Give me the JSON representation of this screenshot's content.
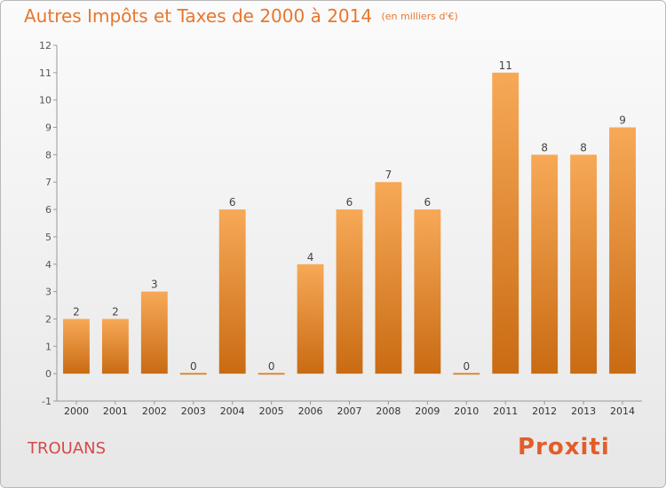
{
  "title": {
    "main": "Autres Impôts et Taxes de 2000 à 2014",
    "unit": "(en milliers d'€)"
  },
  "location": "TROUANS",
  "logo": {
    "text": "Proxiti"
  },
  "colors": {
    "accent": "#e8762d",
    "bar_light": "#f7a957",
    "bar_dark": "#c96b13",
    "location_text": "#d44a4a"
  },
  "chart_data": {
    "type": "bar",
    "categories": [
      "2000",
      "2001",
      "2002",
      "2003",
      "2004",
      "2005",
      "2006",
      "2007",
      "2008",
      "2009",
      "2010",
      "2011",
      "2012",
      "2013",
      "2014"
    ],
    "values": [
      2,
      2,
      3,
      0,
      6,
      0,
      4,
      6,
      7,
      6,
      0,
      11,
      8,
      8,
      9
    ],
    "data_labels": [
      "2",
      "2",
      "3",
      "0",
      "6",
      "0",
      "4",
      "6",
      "7",
      "6",
      "0",
      "11",
      "8",
      "8",
      "9"
    ],
    "title": "Autres Impôts et Taxes de 2000 à 2014",
    "xlabel": "",
    "ylabel": "",
    "ylim": [
      -1,
      12
    ],
    "yticks": [
      -1,
      0,
      1,
      2,
      3,
      4,
      5,
      6,
      7,
      8,
      9,
      10,
      11,
      12
    ],
    "grid": false
  }
}
